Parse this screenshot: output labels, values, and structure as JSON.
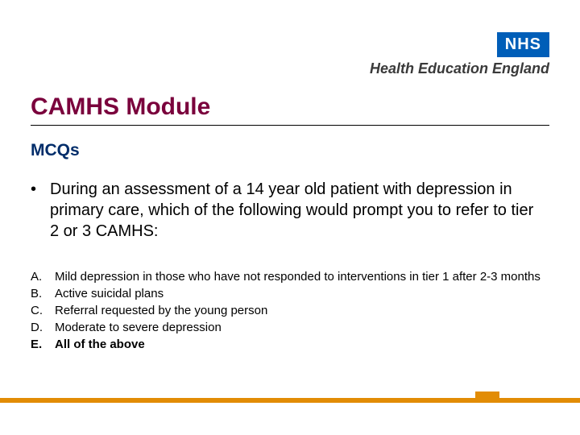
{
  "colors": {
    "nhs_blue": "#005eb8",
    "hee_text": "#3a3a3a",
    "title": "#7a003c",
    "rule": "#000000",
    "subtitle": "#012d6a",
    "body": "#000000",
    "footer": "#e28c05",
    "white": "#ffffff"
  },
  "fonts": {
    "nhs_box_size": 20,
    "nhs_box_weight": "bold",
    "hee_size": 18,
    "hee_weight": "bold",
    "title_size": 30,
    "title_weight": "bold",
    "subtitle_size": 21,
    "question_size": 20,
    "option_size": 15
  },
  "logo": {
    "nhs": "NHS",
    "hee": "Health Education England"
  },
  "title": "CAMHS Module",
  "subtitle": "MCQs",
  "question": "During an assessment of a 14 year old patient with depression in primary care, which of the following would prompt you to refer to tier 2 or 3 CAMHS:",
  "options": [
    {
      "label": "A.",
      "text": "Mild depression in those who have not responded to interventions in tier 1 after 2-3 months",
      "bold": false
    },
    {
      "label": "B.",
      "text": "Active suicidal plans",
      "bold": false
    },
    {
      "label": "C.",
      "text": "Referral requested by the young person",
      "bold": false
    },
    {
      "label": "D.",
      "text": "Moderate to severe depression",
      "bold": false
    },
    {
      "label": "E.",
      "text": "All of the above",
      "bold": true
    }
  ]
}
